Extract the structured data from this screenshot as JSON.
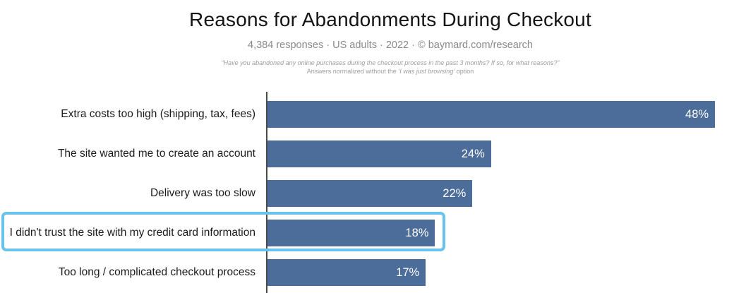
{
  "header": {
    "subtitle": "4,384 responses · US adults · 2022 · © baymard.com/research",
    "quote_line1": "“Have you abandoned any online purchases during the checkout process in the past 3 months? If so, for what reasons?”",
    "quote_line2_prefix": "Answers normalized without the ",
    "quote_line2_italic": "‘I was just browsing’",
    "quote_line2_suffix": " option"
  },
  "chart_data": {
    "type": "bar",
    "orientation": "horizontal",
    "title": "Reasons for Abandonments During Checkout",
    "categories": [
      "Extra costs too high (shipping, tax, fees)",
      "The site wanted me to create an account",
      "Delivery was too slow",
      "I didn't trust the site with my credit card information",
      "Too long / complicated checkout process"
    ],
    "values": [
      48,
      24,
      22,
      18,
      17
    ],
    "value_suffix": "%",
    "xlim": [
      0,
      50
    ],
    "grid": false,
    "legend": false,
    "value_labels_position": "inside-end",
    "highlighted_index": 3
  },
  "colors": {
    "bar": "#4c6d99",
    "highlight_border": "#68c2ea",
    "axis": "#4a4a4a",
    "value_text": "#ffffff",
    "title_text": "#141414",
    "subtitle_text": "#8a8a8a",
    "quote_text": "#9c9c9c"
  }
}
